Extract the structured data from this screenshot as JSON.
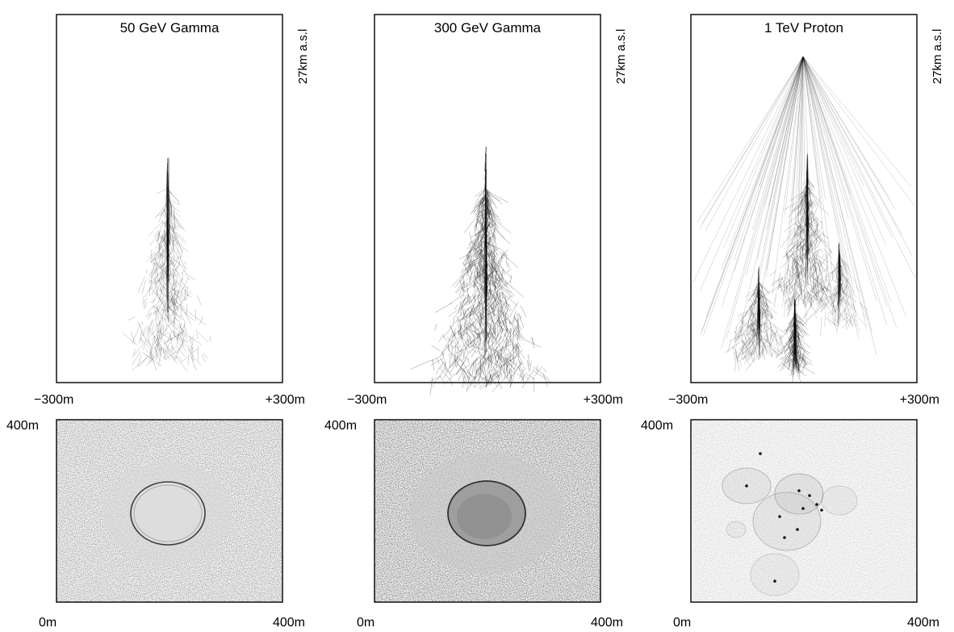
{
  "shower_panels": [
    {
      "title": "50 GeV Gamma",
      "altitude_label": "27km a.s.l",
      "x_left": "−300m",
      "x_right": "+300m"
    },
    {
      "title": "300 GeV Gamma",
      "altitude_label": "27km a.s.l",
      "x_left": "−300m",
      "x_right": "+300m"
    },
    {
      "title": "1 TeV Proton",
      "altitude_label": "27km a.s.l",
      "x_left": "−300m",
      "x_right": "+300m"
    }
  ],
  "ground_panels": [
    {
      "y_top": "400m",
      "x_left": "0m",
      "x_right": "400m"
    },
    {
      "y_top": "400m",
      "x_left": "0m",
      "x_right": "400m"
    },
    {
      "y_top": "400m",
      "x_left": "0m",
      "x_right": "400m"
    }
  ],
  "colors": {
    "ink": "#000000",
    "frame": "#000000",
    "background": "#ffffff"
  }
}
